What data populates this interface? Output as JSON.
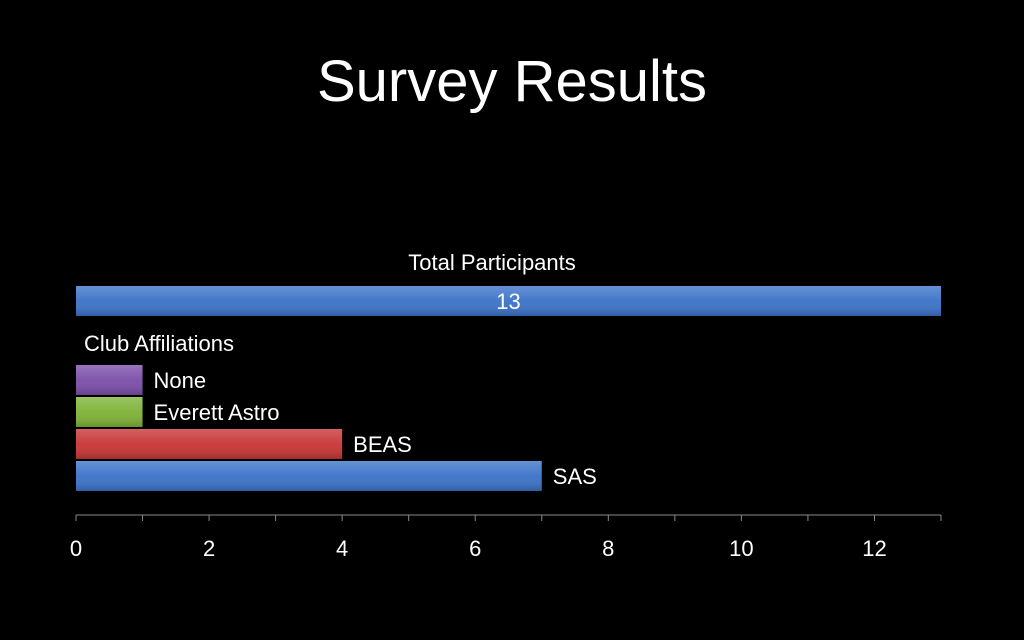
{
  "slide": {
    "title": "Survey Results"
  },
  "chart_data": {
    "type": "bar",
    "orientation": "horizontal",
    "xlim": [
      0,
      13
    ],
    "x_ticks": [
      0,
      2,
      4,
      6,
      8,
      10,
      12
    ],
    "grid": false,
    "groups": [
      {
        "label": "Total Participants",
        "bars": [
          {
            "category": "",
            "value": 13,
            "color": "#3a72c8",
            "value_label": "13"
          }
        ]
      },
      {
        "label": "Club Affiliations",
        "bars": [
          {
            "category": "None",
            "value": 1,
            "color": "#7a4ea8"
          },
          {
            "category": "Everett Astro",
            "value": 1,
            "color": "#7eb236"
          },
          {
            "category": "BEAS",
            "value": 4,
            "color": "#c83434"
          },
          {
            "category": "SAS",
            "value": 7,
            "color": "#3a72c8"
          }
        ]
      }
    ]
  }
}
